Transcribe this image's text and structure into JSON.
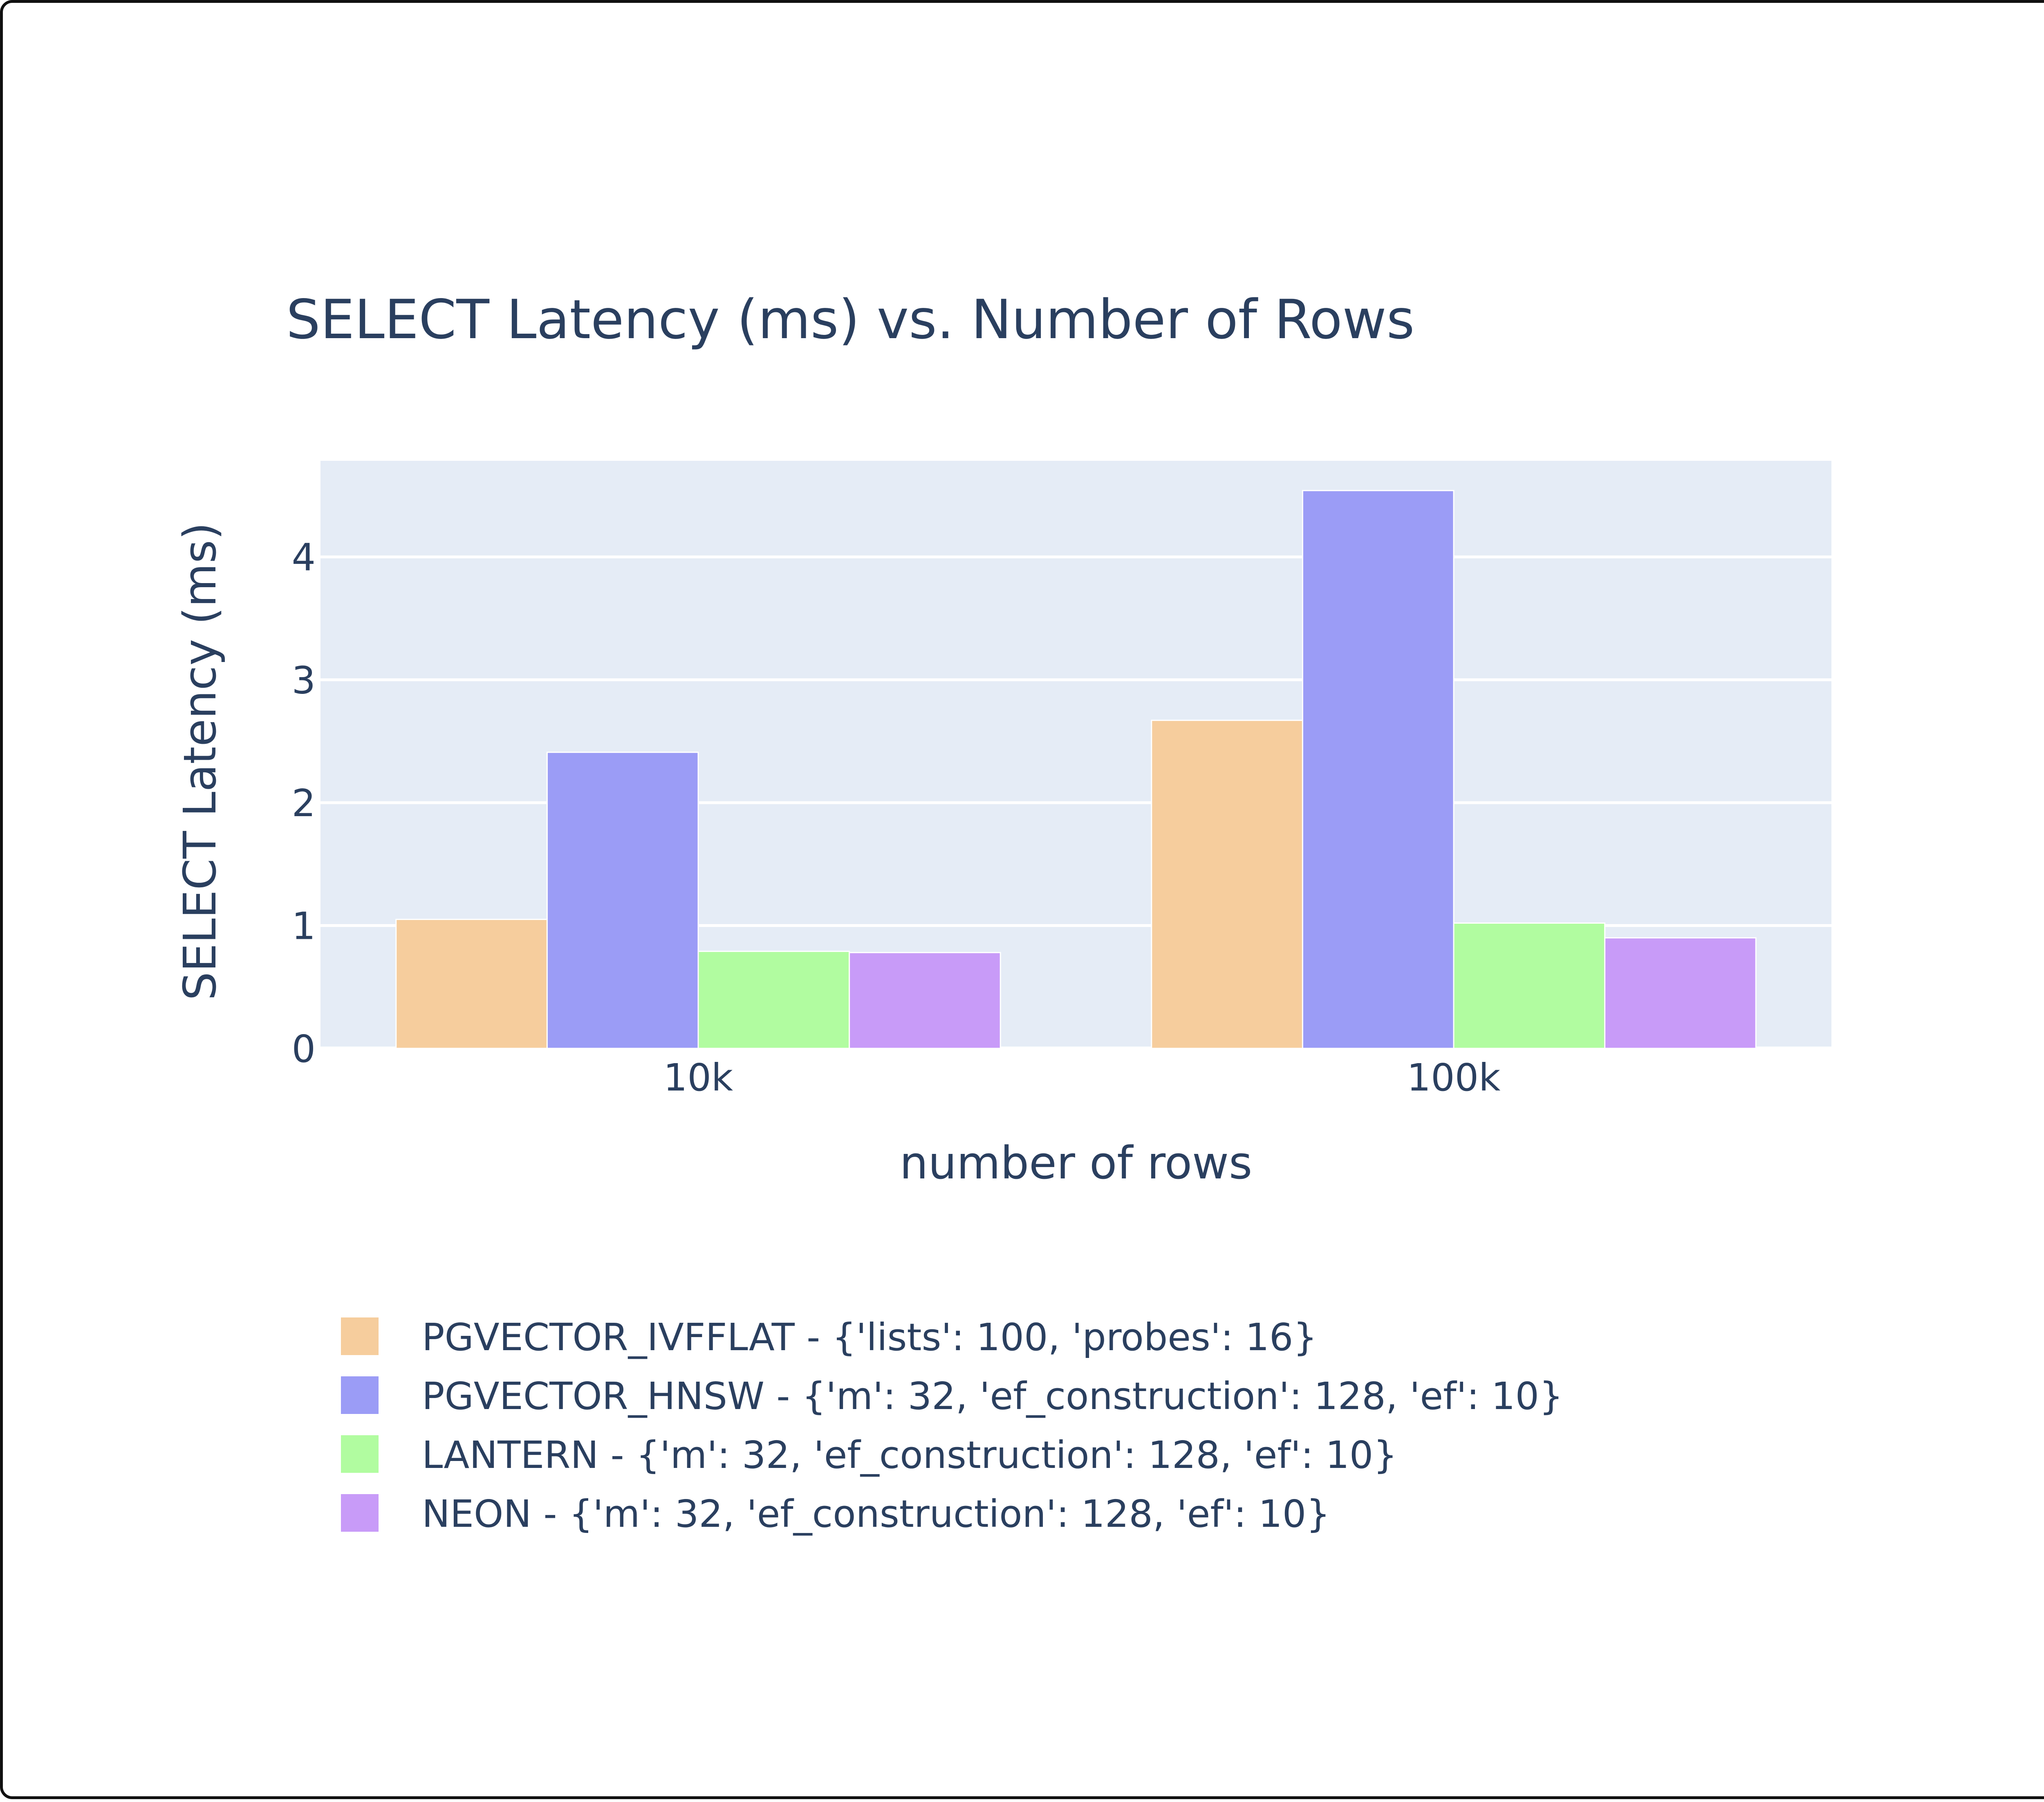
{
  "chart_data": {
    "type": "bar",
    "title": "SELECT Latency (ms) vs. Number of Rows",
    "xlabel": "number of rows",
    "ylabel": "SELECT Latency (ms)",
    "categories": [
      "10k",
      "100k"
    ],
    "ylim": [
      0,
      4.8
    ],
    "yticks": [
      0,
      1,
      2,
      3,
      4
    ],
    "grid": true,
    "legend_position": "bottom",
    "plot_background": "#e5ecf6",
    "series": [
      {
        "name": "PGVECTOR_IVFFLAT - {'lists': 100, 'probes': 16}",
        "values": [
          1.05,
          2.67
        ],
        "color": "#f6cd9d"
      },
      {
        "name": "PGVECTOR_HNSW - {'m': 32, 'ef_construction': 128, 'ef': 10}",
        "values": [
          2.41,
          4.54
        ],
        "color": "#9b9cf6"
      },
      {
        "name": "LANTERN - {'m': 32, 'ef_construction': 128, 'ef': 10}",
        "values": [
          0.79,
          1.02
        ],
        "color": "#b1fca0"
      },
      {
        "name": "NEON - {'m': 32, 'ef_construction': 128, 'ef': 10}",
        "values": [
          0.78,
          0.9
        ],
        "color": "#c89bf8"
      }
    ]
  }
}
